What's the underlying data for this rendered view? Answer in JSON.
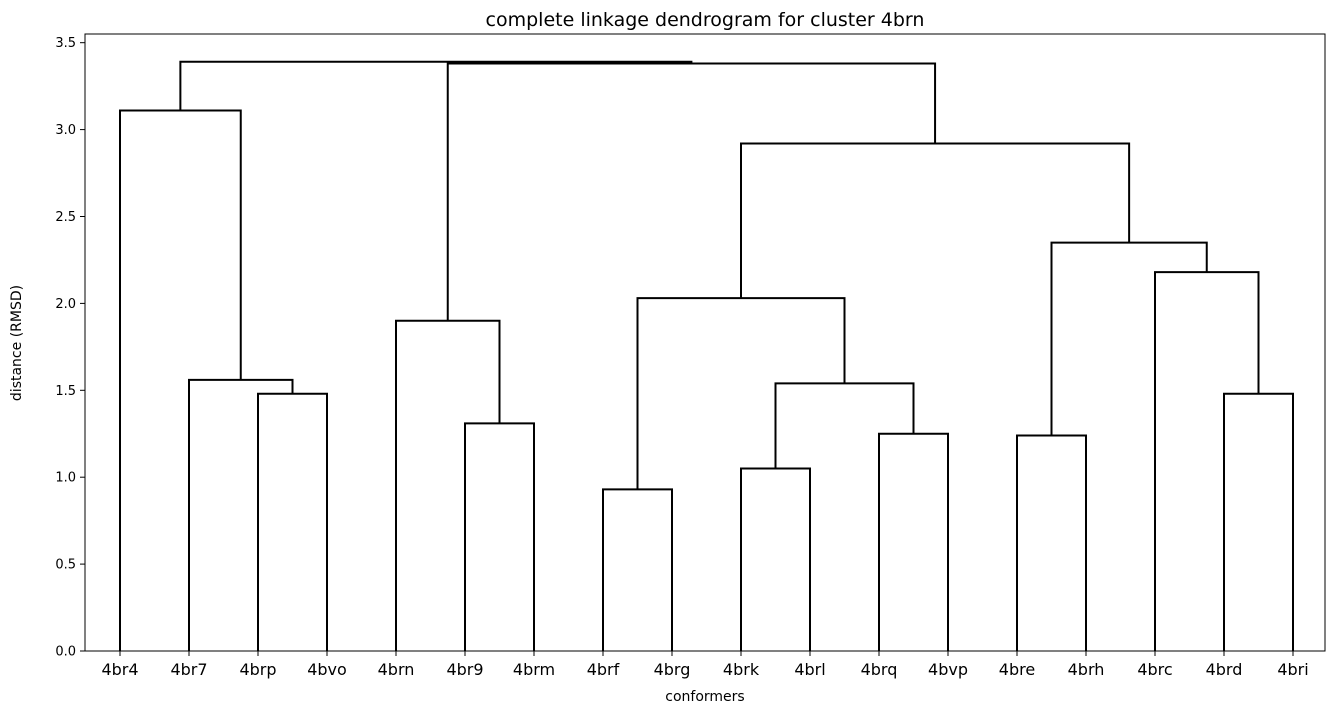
{
  "chart_data": {
    "type": "dendrogram",
    "title": "complete linkage dendrogram for cluster 4brn",
    "xlabel": "conformers",
    "ylabel": "distance (RMSD)",
    "ylim": [
      0,
      3.55
    ],
    "yticks": [
      "0.0",
      "0.5",
      "1.0",
      "1.5",
      "2.0",
      "2.5",
      "3.0",
      "3.5"
    ],
    "ytick_values": [
      0,
      0.5,
      1.0,
      1.5,
      2.0,
      2.5,
      3.0,
      3.5
    ],
    "leaves": [
      "4br4",
      "4br7",
      "4brp",
      "4bvo",
      "4brn",
      "4br9",
      "4brm",
      "4brf",
      "4brg",
      "4brk",
      "4brl",
      "4brq",
      "4bvp",
      "4bre",
      "4brh",
      "4brc",
      "4brd",
      "4bri"
    ],
    "merges": [
      {
        "left": "4brp",
        "right": "4bvo",
        "height": 1.48
      },
      {
        "left": "4br7",
        "right": "[4brp,4bvo]",
        "height": 1.56
      },
      {
        "left": "4br4",
        "right": "[4br7,4brp,4bvo]",
        "height": 3.11
      },
      {
        "left": "4br9",
        "right": "4brm",
        "height": 1.31
      },
      {
        "left": "4brn",
        "right": "[4br9,4brm]",
        "height": 1.9
      },
      {
        "left": "4brf",
        "right": "4brg",
        "height": 0.93
      },
      {
        "left": "4brk",
        "right": "4brl",
        "height": 1.05
      },
      {
        "left": "4brq",
        "right": "4bvp",
        "height": 1.25
      },
      {
        "left": "[4brk,4brl]",
        "right": "[4brq,4bvp]",
        "height": 1.54
      },
      {
        "left": "[4brf,4brg]",
        "right": "[4brk,4brl,4brq,4bvp]",
        "height": 2.03
      },
      {
        "left": "4bre",
        "right": "4brh",
        "height": 1.24
      },
      {
        "left": "4brd",
        "right": "4bri",
        "height": 1.48
      },
      {
        "left": "4brc",
        "right": "[4brd,4bri]",
        "height": 2.18
      },
      {
        "left": "[4bre,4brh]",
        "right": "[4brc,4brd,4bri]",
        "height": 2.35
      },
      {
        "left": "[4brf..4bvp]",
        "right": "[4bre..4bri]",
        "height": 2.92
      },
      {
        "left": "[4brn,4br9,4brm]",
        "right": "[4brf..4bri]",
        "height": 3.38
      },
      {
        "left": "[4br4,4br7,4brp,4bvo]",
        "right": "[4brn..4bri]",
        "height": 3.39
      }
    ]
  }
}
